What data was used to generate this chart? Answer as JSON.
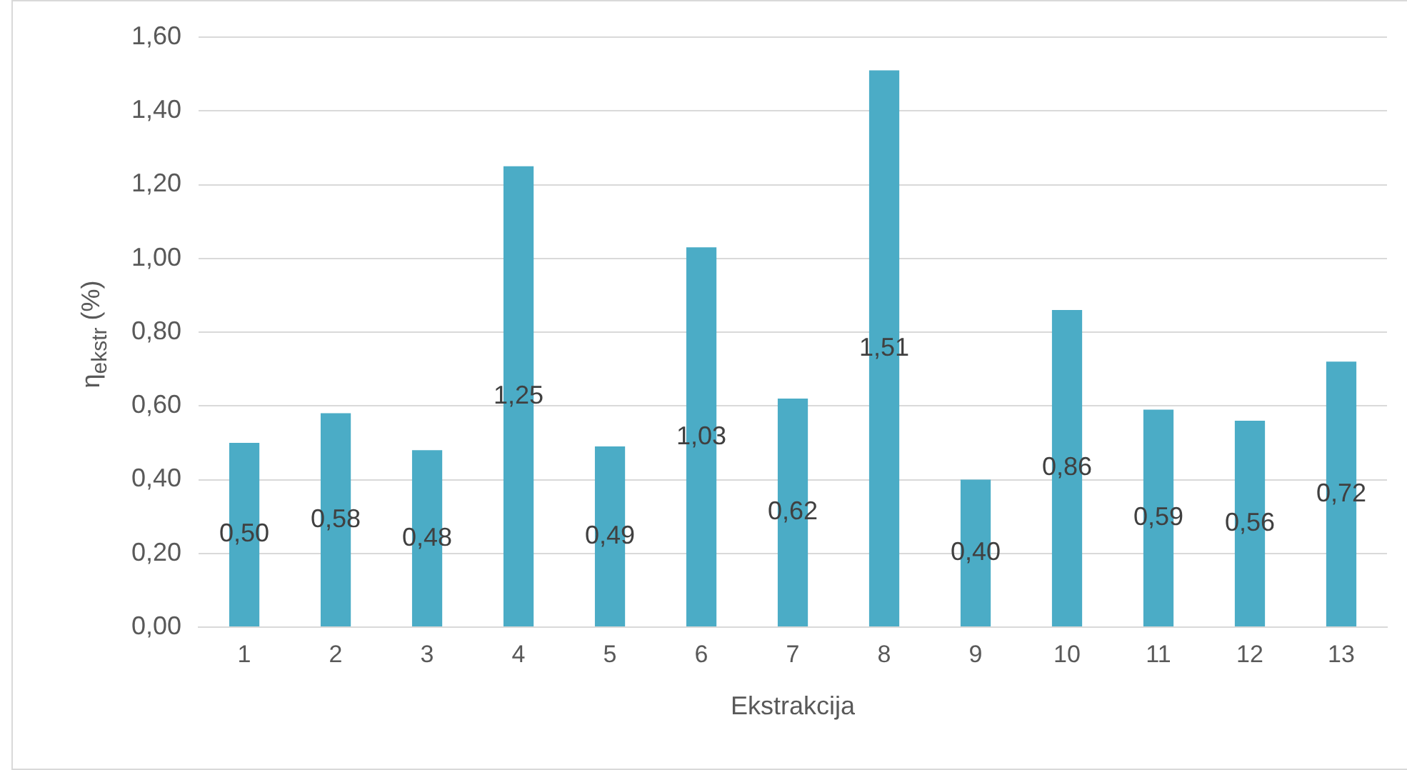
{
  "chart_data": {
    "type": "bar",
    "xlabel": "Ekstrakcija",
    "ylabel": "η$_{ekstr}$ (%)",
    "categories": [
      "1",
      "2",
      "3",
      "4",
      "5",
      "6",
      "7",
      "8",
      "9",
      "10",
      "11",
      "12",
      "13"
    ],
    "values": [
      0.5,
      0.58,
      0.48,
      1.25,
      0.49,
      1.03,
      0.62,
      1.51,
      0.4,
      0.86,
      0.59,
      0.56,
      0.72
    ],
    "value_labels": [
      "0,50",
      "0,58",
      "0,48",
      "1,25",
      "0,49",
      "1,03",
      "0,62",
      "1,51",
      "0,40",
      "0,86",
      "0,59",
      "0,56",
      "0,72"
    ],
    "color": "#4bacc6",
    "ylim": [
      0,
      1.6
    ],
    "yticks": [
      {
        "value": 0,
        "label": "0,00"
      },
      {
        "value": 0.2,
        "label": "0,20"
      },
      {
        "value": 0.4,
        "label": "0,40"
      },
      {
        "value": 0.6,
        "label": "0,60"
      },
      {
        "value": 0.8,
        "label": "0,80"
      },
      {
        "value": 1.0,
        "label": "1,00"
      },
      {
        "value": 1.2,
        "label": "1,20"
      },
      {
        "value": 1.4,
        "label": "1,40"
      },
      {
        "value": 1.6,
        "label": "1,60"
      }
    ],
    "grid": "y",
    "legend": false
  }
}
